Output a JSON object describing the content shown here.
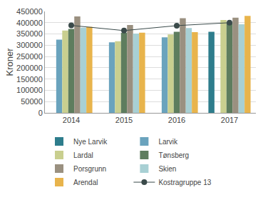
{
  "chart_data": {
    "type": "bar",
    "y_label": "Kroner",
    "categories": [
      "2014",
      "2015",
      "2016",
      "2017"
    ],
    "series": [
      {
        "name": "Nye Larvik",
        "color": "#2e7d8c",
        "values": [
          null,
          null,
          null,
          360000
        ]
      },
      {
        "name": "Larvik",
        "color": "#6aa3bd",
        "values": [
          325000,
          313000,
          335000,
          null
        ]
      },
      {
        "name": "Lardal",
        "color": "#c9cf8f",
        "values": [
          365000,
          318000,
          348000,
          412000
        ]
      },
      {
        "name": "Tønsberg",
        "color": "#5e7d5e",
        "values": [
          372000,
          355000,
          360000,
          400000
        ]
      },
      {
        "name": "Porsgrunn",
        "color": "#9a9080",
        "values": [
          428000,
          390000,
          420000,
          422000
        ]
      },
      {
        "name": "Skien",
        "color": "#a8d0d4",
        "values": [
          378000,
          352000,
          376000,
          393000
        ]
      },
      {
        "name": "Arendal",
        "color": "#e8b44c",
        "values": [
          382000,
          356000,
          358000,
          430000
        ]
      },
      {
        "name": "Kostragruppe 13",
        "color": "#3a4a4a",
        "type": "line",
        "marker": "circle",
        "values": [
          388000,
          365000,
          387000,
          400000
        ]
      }
    ],
    "ylim": [
      0,
      450000
    ],
    "yticks": [
      0,
      50000,
      100000,
      150000,
      200000,
      250000,
      300000,
      350000,
      400000,
      450000
    ],
    "grid": true,
    "legend": "bottom"
  }
}
